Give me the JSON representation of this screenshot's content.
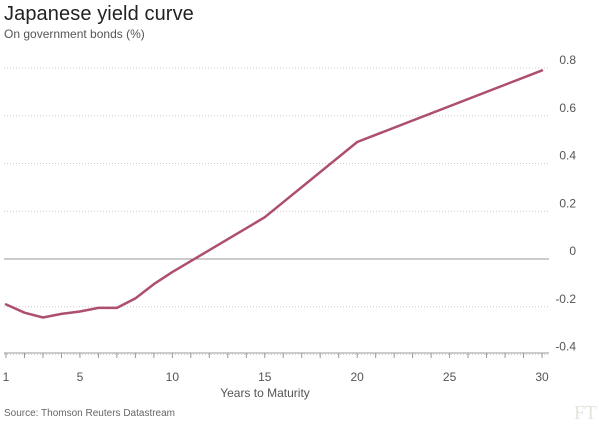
{
  "chart_data": {
    "type": "line",
    "title": "Japanese yield curve",
    "subtitle": "On government bonds (%)",
    "xlabel": "Years to Maturity",
    "ylabel": "",
    "source": "Source: Thomson Reuters Datastream",
    "logo": "FT",
    "xlim": [
      1,
      31
    ],
    "ylim": [
      -0.4,
      0.85
    ],
    "xticks": [
      1,
      5,
      10,
      15,
      20,
      25,
      30
    ],
    "yticks": [
      0.8,
      0.6,
      0.4,
      0.2,
      0,
      -0.2,
      -0.4
    ],
    "ytick_labels": [
      "0.8",
      "0.6",
      "0.4",
      "0.2",
      "0",
      "-0.2",
      "-0.4"
    ],
    "grid": "horizontal dotted",
    "colors": {
      "line": "#ad4f6d",
      "grid": "#cccccc",
      "zero": "#999999",
      "axis": "#999999"
    },
    "series": [
      {
        "x": [
          1,
          2,
          3,
          4,
          5,
          6,
          7,
          8,
          9,
          10,
          15,
          20,
          30
        ],
        "values": [
          -0.19,
          -0.225,
          -0.245,
          -0.23,
          -0.22,
          -0.205,
          -0.205,
          -0.165,
          -0.105,
          -0.055,
          0.175,
          0.49,
          0.79
        ]
      }
    ]
  }
}
